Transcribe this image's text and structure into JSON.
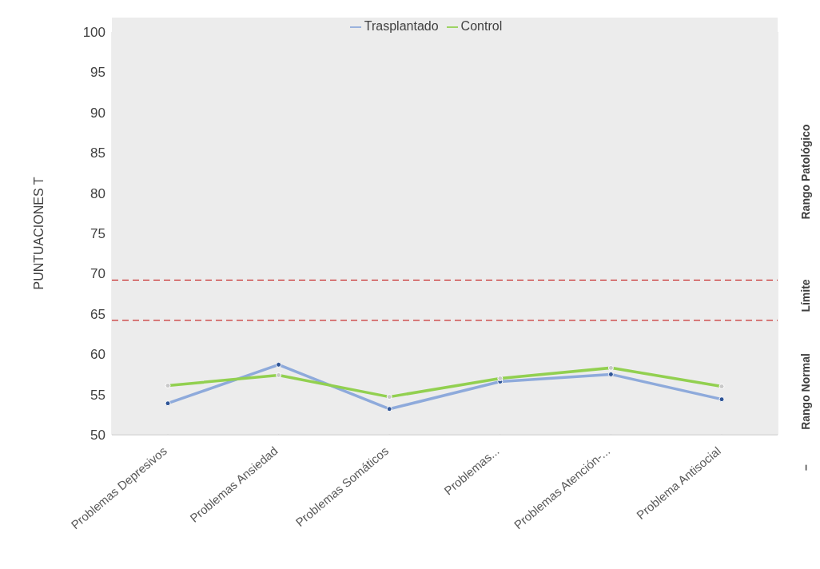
{
  "chart_data": {
    "type": "line",
    "ylabel": "PUNTUACIONES T",
    "categories": [
      "Problemas Depresivos",
      "Problemas  Ansiedad",
      "Problemas Somáticos",
      "Problemas...",
      "Problemas Atención-...",
      "Problema Antisocial"
    ],
    "series": [
      {
        "name": "Trasplantado",
        "color": "#8eaadb",
        "values": [
          53.9,
          58.7,
          53.2,
          56.6,
          57.5,
          54.4
        ]
      },
      {
        "name": "Control",
        "color": "#92d050",
        "values": [
          56.1,
          57.4,
          54.7,
          57.0,
          58.3,
          56.0
        ]
      }
    ],
    "ylim": [
      50,
      100
    ],
    "yticks": [
      50,
      55,
      60,
      65,
      70,
      75,
      80,
      85,
      90,
      95,
      100
    ],
    "ref_lines": [
      {
        "axis": "y",
        "value": 69.2,
        "color": "#c00000",
        "line_style": "dashed"
      },
      {
        "axis": "y",
        "value": 64.2,
        "color": "#c00000",
        "line_style": "dashed"
      }
    ],
    "annotations": [
      "Rango Patológico",
      "Límite",
      "Rango Normal",
      "–"
    ],
    "grid": true,
    "legend": "top",
    "marker": "circle",
    "line_style": "solid"
  }
}
